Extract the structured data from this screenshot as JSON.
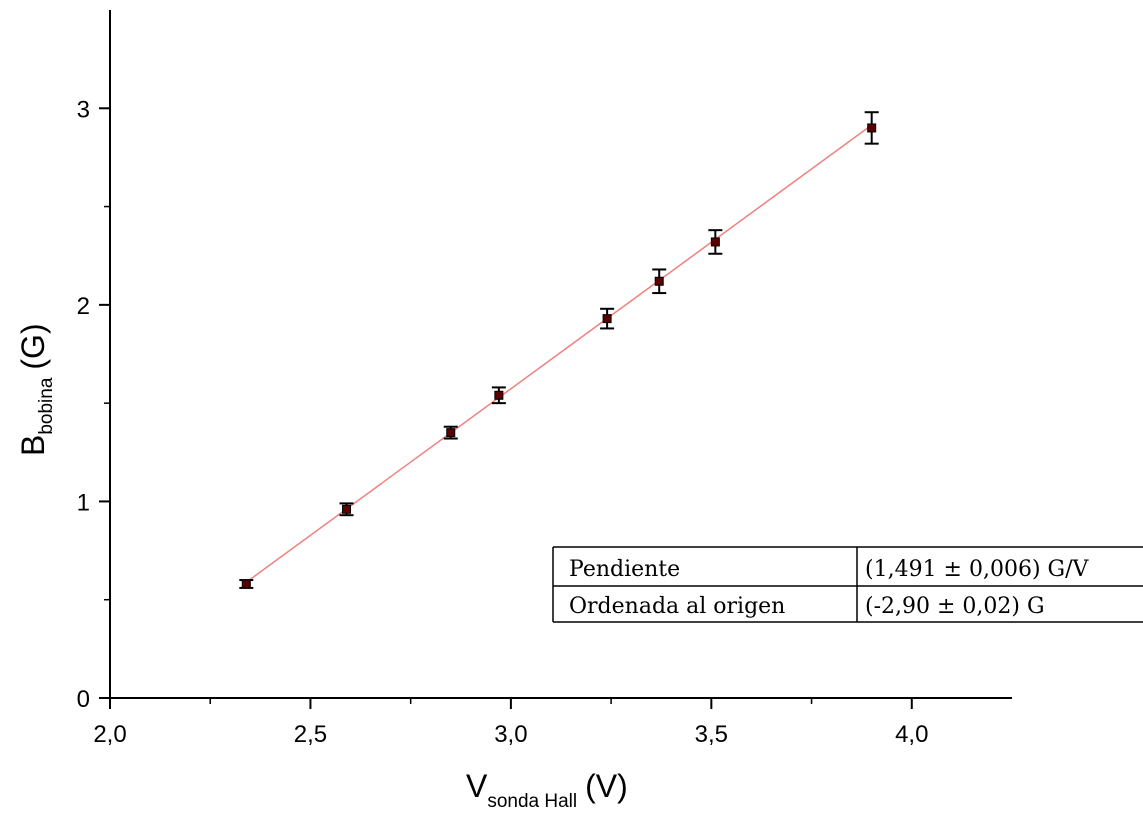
{
  "chart_data": {
    "type": "scatter",
    "x_axis": {
      "label_main": "V",
      "label_sub": "sonda Hall",
      "label_unit": "(V)",
      "range": [
        2.0,
        4.25
      ],
      "major_ticks": [
        2.0,
        2.5,
        3.0,
        3.5,
        4.0
      ],
      "major_tick_labels": [
        "2,0",
        "2,5",
        "3,0",
        "3,5",
        "4,0"
      ],
      "minor_ticks": [
        2.25,
        2.75,
        3.25,
        3.75
      ]
    },
    "y_axis": {
      "label_main": "B",
      "label_sub": "bobina",
      "label_unit": "(G)",
      "range": [
        0,
        3.5
      ],
      "major_ticks": [
        0,
        1,
        2,
        3
      ],
      "major_tick_labels": [
        "0",
        "1",
        "2",
        "3"
      ],
      "minor_ticks": [
        0.5,
        1.5,
        2.5
      ]
    },
    "grid": false,
    "series": [
      {
        "type": "scatter",
        "marker_color": "#5a0000",
        "points": [
          {
            "x": 2.34,
            "y": 0.58,
            "err": 0.02
          },
          {
            "x": 2.59,
            "y": 0.96,
            "err": 0.03
          },
          {
            "x": 2.85,
            "y": 1.35,
            "err": 0.03
          },
          {
            "x": 2.97,
            "y": 1.54,
            "err": 0.04
          },
          {
            "x": 3.24,
            "y": 1.93,
            "err": 0.05
          },
          {
            "x": 3.37,
            "y": 2.12,
            "err": 0.06
          },
          {
            "x": 3.51,
            "y": 2.32,
            "err": 0.06
          },
          {
            "x": 3.9,
            "y": 2.9,
            "err": 0.08
          }
        ]
      },
      {
        "type": "line",
        "line_color": "#f08080",
        "x_range": [
          2.34,
          3.9
        ],
        "slope": 1.491,
        "intercept": -2.9
      }
    ],
    "fit_table": {
      "rows": [
        {
          "param": "Pendiente",
          "value": "(1,491 ± 0,006) G/V"
        },
        {
          "param": "Ordenada al origen",
          "value": "(-2,90 ± 0,02) G"
        }
      ]
    }
  }
}
